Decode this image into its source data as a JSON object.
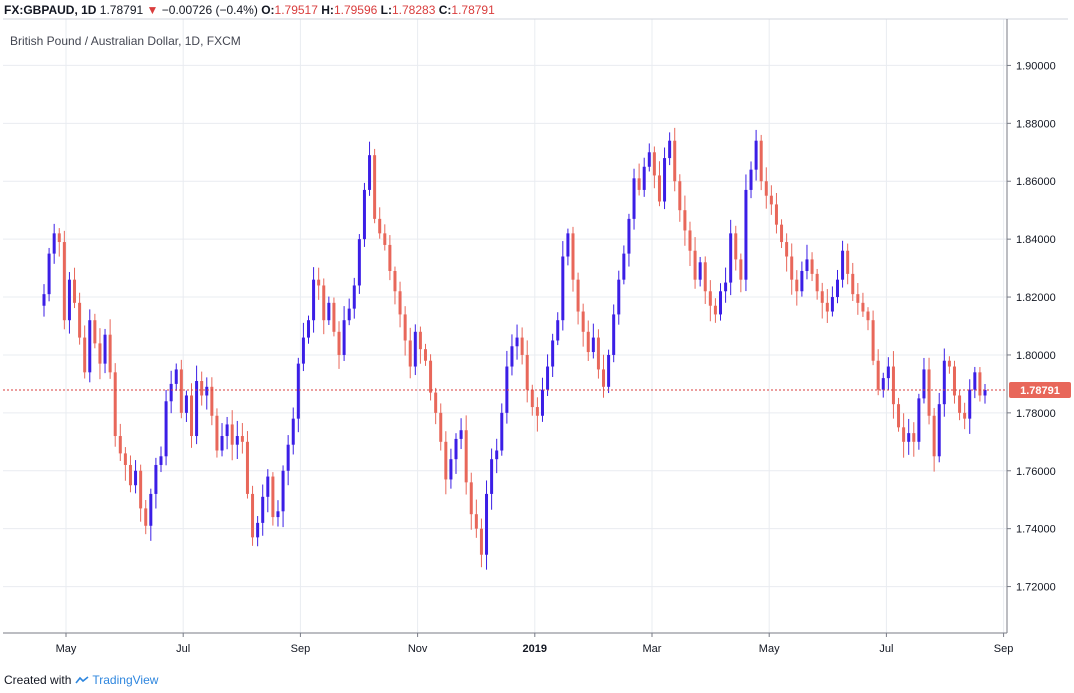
{
  "header": {
    "symbol": "FX:GBPAUD, 1D",
    "last": "1.78791",
    "arrow": "▼",
    "change": "−0.00726 (−0.4%)",
    "o_label": "O:",
    "o": "1.79517",
    "h_label": "H:",
    "h": "1.79596",
    "l_label": "L:",
    "l": "1.78283",
    "c_label": "C:",
    "c": "1.78791"
  },
  "footer": {
    "created_with": "Created with",
    "brand": "TradingView"
  },
  "colors": {
    "up": "#3b1ee6",
    "down": "#e8675a",
    "grid": "#e9ecf1",
    "price_line": "#d93d3d",
    "price_badge": "#e8675a"
  },
  "chart_data": {
    "type": "candlestick",
    "title": "British Pound / Australian Dollar, 1D, FXCM",
    "ylim": [
      1.705,
      1.915
    ],
    "y_ticks": [
      "1.90000",
      "1.88000",
      "1.86000",
      "1.84000",
      "1.82000",
      "1.80000",
      "1.78000",
      "1.76000",
      "1.74000",
      "1.72000"
    ],
    "x_ticks": [
      "May",
      "Jul",
      "Sep",
      "Nov",
      "2019",
      "Mar",
      "May",
      "Jul",
      "Sep"
    ],
    "last_price_label": "1.78791",
    "last_price": 1.78791,
    "grid": true,
    "series": [
      {
        "name": "GBPAUD",
        "closes": [
          1.821,
          1.835,
          1.842,
          1.839,
          1.812,
          1.826,
          1.818,
          1.806,
          1.794,
          1.812,
          1.804,
          1.797,
          1.807,
          1.794,
          1.772,
          1.766,
          1.762,
          1.755,
          1.76,
          1.747,
          1.741,
          1.752,
          1.762,
          1.765,
          1.784,
          1.79,
          1.795,
          1.78,
          1.786,
          1.772,
          1.791,
          1.786,
          1.789,
          1.779,
          1.767,
          1.772,
          1.776,
          1.769,
          1.772,
          1.77,
          1.752,
          1.737,
          1.742,
          1.751,
          1.758,
          1.744,
          1.746,
          1.76,
          1.769,
          1.778,
          1.797,
          1.806,
          1.812,
          1.826,
          1.824,
          1.812,
          1.818,
          1.808,
          1.8,
          1.812,
          1.816,
          1.824,
          1.84,
          1.857,
          1.869,
          1.847,
          1.842,
          1.838,
          1.829,
          1.822,
          1.814,
          1.805,
          1.796,
          1.808,
          1.802,
          1.798,
          1.787,
          1.78,
          1.77,
          1.757,
          1.764,
          1.771,
          1.774,
          1.756,
          1.745,
          1.74,
          1.731,
          1.752,
          1.764,
          1.767,
          1.78,
          1.796,
          1.803,
          1.806,
          1.8,
          1.788,
          1.782,
          1.779,
          1.788,
          1.796,
          1.805,
          1.812,
          1.834,
          1.842,
          1.826,
          1.815,
          1.808,
          1.801,
          1.806,
          1.795,
          1.789,
          1.8,
          1.814,
          1.826,
          1.835,
          1.847,
          1.861,
          1.857,
          1.865,
          1.87,
          1.862,
          1.853,
          1.868,
          1.874,
          1.86,
          1.85,
          1.843,
          1.836,
          1.826,
          1.832,
          1.822,
          1.817,
          1.814,
          1.822,
          1.825,
          1.842,
          1.833,
          1.826,
          1.857,
          1.864,
          1.874,
          1.86,
          1.855,
          1.852,
          1.845,
          1.839,
          1.834,
          1.826,
          1.822,
          1.829,
          1.833,
          1.828,
          1.822,
          1.818,
          1.815,
          1.82,
          1.826,
          1.836,
          1.828,
          1.821,
          1.818,
          1.815,
          1.812,
          1.798,
          1.788,
          1.792,
          1.796,
          1.783,
          1.775,
          1.77,
          1.773,
          1.77,
          1.785,
          1.795,
          1.779,
          1.765,
          1.783,
          1.798,
          1.796,
          1.786,
          1.78,
          1.778,
          1.788,
          1.794,
          1.786,
          1.7879
        ]
      }
    ]
  }
}
